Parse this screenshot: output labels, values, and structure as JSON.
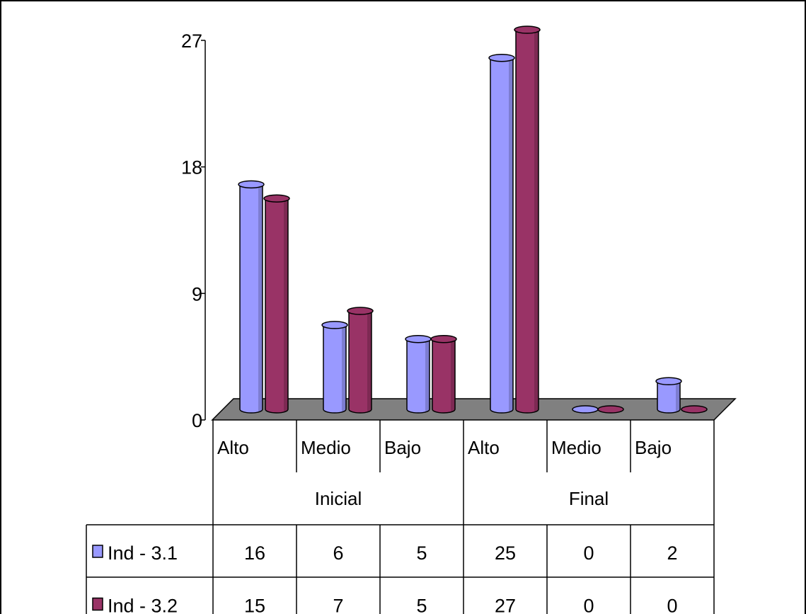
{
  "chart_data": {
    "type": "bar",
    "title": "",
    "xlabel": "",
    "ylabel": "",
    "ylim": [
      0,
      27
    ],
    "yticks": [
      0,
      9,
      18,
      27
    ],
    "groups": [
      {
        "label": "Inicial",
        "categories": [
          "Alto",
          "Medio",
          "Bajo"
        ]
      },
      {
        "label": "Final",
        "categories": [
          "Alto",
          "Medio",
          "Bajo"
        ]
      }
    ],
    "categories": [
      "Alto",
      "Medio",
      "Bajo",
      "Alto",
      "Medio",
      "Bajo"
    ],
    "series": [
      {
        "name": "Ind - 3.1",
        "color": "#9999ff",
        "values": [
          16,
          6,
          5,
          25,
          0,
          2
        ]
      },
      {
        "name": "Ind - 3.2",
        "color": "#993366",
        "values": [
          15,
          7,
          5,
          27,
          0,
          0
        ]
      }
    ],
    "legend": "data-table",
    "gridlines": false,
    "floor_color": "#808080"
  }
}
